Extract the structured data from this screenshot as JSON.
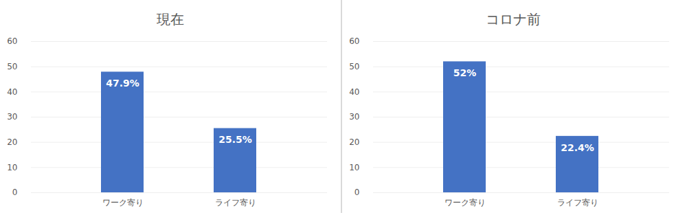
{
  "chart_data": [
    {
      "type": "bar",
      "title": "現在",
      "categories": [
        "ワーク寄り",
        "ライフ寄り"
      ],
      "values": [
        47.9,
        25.5
      ],
      "value_labels": [
        "47.9%",
        "25.5%"
      ],
      "color": "#4472c4",
      "ylim": [
        0,
        60
      ],
      "yticks": [
        0,
        10,
        20,
        30,
        40,
        50,
        60
      ],
      "grid": true,
      "data_labels": true
    },
    {
      "type": "bar",
      "title": "コロナ前",
      "categories": [
        "ワーク寄り",
        "ライフ寄り"
      ],
      "values": [
        52,
        22.4
      ],
      "value_labels": [
        "52%",
        "22.4%"
      ],
      "color": "#4472c4",
      "ylim": [
        0,
        60
      ],
      "yticks": [
        0,
        10,
        20,
        30,
        40,
        50,
        60
      ],
      "grid": true,
      "data_labels": true
    }
  ]
}
